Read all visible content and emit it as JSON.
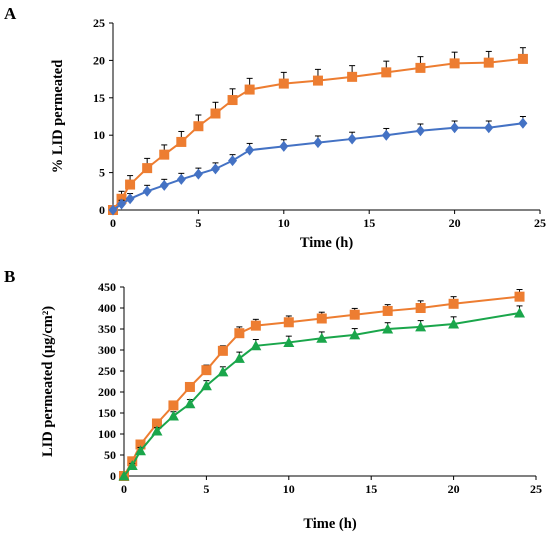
{
  "chart_data": [
    {
      "panel": "A",
      "type": "line",
      "xlabel": "Time (h)",
      "ylabel": "% LID permeated",
      "xlim": [
        0,
        25
      ],
      "ylim": [
        0,
        25
      ],
      "xticks": [
        0,
        5,
        10,
        15,
        20,
        25
      ],
      "yticks": [
        0,
        5,
        10,
        15,
        20,
        25
      ],
      "grid": false,
      "legend": "none",
      "series": [
        {
          "color": "#ED7D31",
          "marker": "square",
          "x": [
            0,
            0.5,
            1,
            2,
            3,
            4,
            5,
            6,
            7,
            8,
            10,
            12,
            14,
            16,
            18,
            20,
            22,
            24
          ],
          "y": [
            0,
            1.5,
            3.4,
            5.6,
            7.4,
            9.1,
            11.2,
            12.9,
            14.7,
            16.1,
            16.9,
            17.3,
            17.8,
            18.4,
            19.0,
            19.6,
            19.7,
            20.2
          ],
          "err": [
            0,
            1.0,
            1.2,
            1.3,
            1.3,
            1.4,
            1.5,
            1.5,
            1.5,
            1.5,
            1.5,
            1.5,
            1.5,
            1.5,
            1.5,
            1.5,
            1.5,
            1.5
          ]
        },
        {
          "color": "#4472C4",
          "marker": "diamond",
          "x": [
            0,
            0.5,
            1,
            2,
            3,
            4,
            5,
            6,
            7,
            8,
            10,
            12,
            14,
            16,
            18,
            20,
            22,
            24
          ],
          "y": [
            0,
            0.8,
            1.5,
            2.5,
            3.3,
            4.1,
            4.8,
            5.5,
            6.6,
            8.0,
            8.5,
            9.0,
            9.5,
            10.0,
            10.6,
            11.0,
            11.0,
            11.6
          ],
          "err": [
            0,
            0.5,
            0.7,
            0.8,
            0.8,
            0.8,
            0.8,
            0.8,
            0.8,
            0.9,
            0.9,
            0.9,
            0.9,
            0.9,
            0.9,
            0.9,
            0.9,
            0.9
          ]
        }
      ]
    },
    {
      "panel": "B",
      "type": "line",
      "xlabel": "Time (h)",
      "ylabel": "LID permeated (μg/cm²)",
      "xlim": [
        0,
        25
      ],
      "ylim": [
        0,
        450
      ],
      "xticks": [
        0,
        5,
        10,
        15,
        20,
        25
      ],
      "yticks": [
        0,
        50,
        100,
        150,
        200,
        250,
        300,
        350,
        400,
        450
      ],
      "grid": false,
      "legend": "none",
      "series": [
        {
          "color": "#ED7D31",
          "marker": "square",
          "x": [
            0,
            0.5,
            1,
            2,
            3,
            4,
            5,
            6,
            7,
            8,
            10,
            12,
            14,
            16,
            18,
            20,
            24
          ],
          "y": [
            0,
            35,
            75,
            125,
            168,
            212,
            252,
            298,
            340,
            358,
            366,
            375,
            384,
            393,
            400,
            410,
            427
          ],
          "err": [
            0,
            5,
            8,
            10,
            10,
            10,
            12,
            12,
            15,
            15,
            15,
            15,
            15,
            15,
            17,
            17,
            17
          ]
        },
        {
          "color": "#1AA64B",
          "marker": "triangle",
          "x": [
            0,
            0.5,
            1,
            2,
            3,
            4,
            5,
            6,
            7,
            8,
            10,
            12,
            14,
            16,
            18,
            20,
            24
          ],
          "y": [
            0,
            25,
            60,
            107,
            143,
            172,
            215,
            248,
            280,
            310,
            318,
            328,
            336,
            350,
            355,
            362,
            388
          ],
          "err": [
            0,
            5,
            8,
            8,
            10,
            10,
            12,
            12,
            15,
            15,
            15,
            15,
            15,
            15,
            15,
            17,
            17
          ]
        }
      ]
    }
  ]
}
